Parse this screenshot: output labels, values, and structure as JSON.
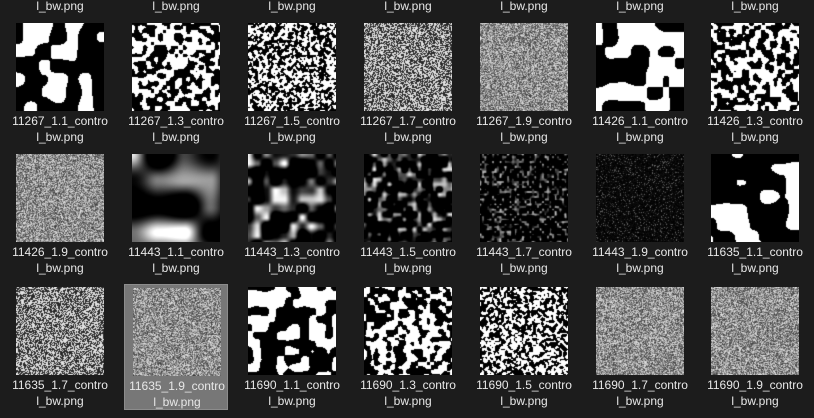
{
  "top_row_labels": [
    "l_bw.png",
    "l_bw.png",
    "l_bw.png",
    "l_bw.png",
    "l_bw.png",
    "l_bw.png",
    "l_bw.png"
  ],
  "files": [
    {
      "line1": "11267_1.1_contro",
      "line2": "l_bw.png",
      "pattern": "blob-coarse"
    },
    {
      "line1": "11267_1.3_contro",
      "line2": "l_bw.png",
      "pattern": "blob-fine"
    },
    {
      "line1": "11267_1.5_contro",
      "line2": "l_bw.png",
      "pattern": "noise-medium"
    },
    {
      "line1": "11267_1.7_contro",
      "line2": "l_bw.png",
      "pattern": "noise-fine"
    },
    {
      "line1": "11267_1.9_contro",
      "line2": "l_bw.png",
      "pattern": "noise-grey"
    },
    {
      "line1": "11426_1.1_contro",
      "line2": "l_bw.png",
      "pattern": "blob-coarse"
    },
    {
      "line1": "11426_1.3_contro",
      "line2": "l_bw.png",
      "pattern": "blob-fine"
    },
    {
      "line1": "11426_1.9_contro",
      "line2": "l_bw.png",
      "pattern": "noise-grey"
    },
    {
      "line1": "11443_1.1_contro",
      "line2": "l_bw.png",
      "pattern": "soft-blur-large"
    },
    {
      "line1": "11443_1.3_contro",
      "line2": "l_bw.png",
      "pattern": "soft-blur-medium"
    },
    {
      "line1": "11443_1.5_contro",
      "line2": "l_bw.png",
      "pattern": "soft-blur-small"
    },
    {
      "line1": "11443_1.7_contro",
      "line2": "l_bw.png",
      "pattern": "dark-speckle"
    },
    {
      "line1": "11443_1.9_contro",
      "line2": "l_bw.png",
      "pattern": "dark-speckle-fine"
    },
    {
      "line1": "11635_1.1_contro",
      "line2": "l_bw.png",
      "pattern": "blob-coarse"
    },
    {
      "line1": "11635_1.7_contro",
      "line2": "l_bw.png",
      "pattern": "noise-fine"
    },
    {
      "line1": "11635_1.9_contro",
      "line2": "l_bw.png",
      "pattern": "noise-grey",
      "selected": true
    },
    {
      "line1": "11690_1.1_contro",
      "line2": "l_bw.png",
      "pattern": "blob-medium"
    },
    {
      "line1": "11690_1.3_contro",
      "line2": "l_bw.png",
      "pattern": "blob-fine"
    },
    {
      "line1": "11690_1.5_contro",
      "line2": "l_bw.png",
      "pattern": "noise-medium"
    },
    {
      "line1": "11690_1.7_contro",
      "line2": "l_bw.png",
      "pattern": "noise-grey"
    },
    {
      "line1": "11690_1.9_contro",
      "line2": "l_bw.png",
      "pattern": "noise-grey"
    }
  ],
  "colors": {
    "background": "#1c1c1c",
    "text": "#e8e8e8",
    "selection": "#777777"
  }
}
